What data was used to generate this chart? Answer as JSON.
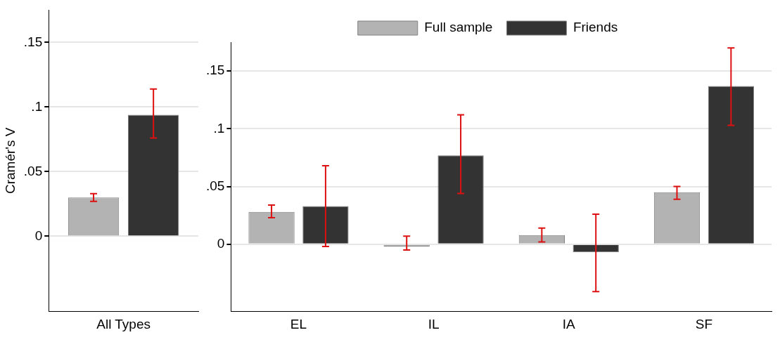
{
  "chart_data": [
    {
      "type": "bar",
      "ylabel": "Cramér's V",
      "categories": [
        "All Types"
      ],
      "series": [
        {
          "color": "#b3b3b3",
          "values": [
            0.03
          ],
          "errors": [
            [
              0.027,
              0.033
            ]
          ]
        },
        {
          "color": "#333333",
          "values": [
            0.094
          ],
          "errors": [
            [
              0.076,
              0.114
            ]
          ]
        }
      ],
      "ylim": [
        -0.058,
        0.175
      ],
      "yticks": [
        0,
        {
          "value": 0.05,
          "label": ".05"
        },
        {
          "value": 0.1,
          "label": ".1"
        },
        {
          "value": 0.15,
          "label": ".15"
        }
      ],
      "grid": "y",
      "legend": false
    },
    {
      "type": "bar",
      "categories": [
        "EL",
        "IL",
        "IA",
        "SF"
      ],
      "series": [
        {
          "name": "Full sample",
          "color": "#b3b3b3",
          "values": [
            0.028,
            -0.002,
            0.008,
            0.045
          ],
          "errors": [
            [
              0.023,
              0.034
            ],
            [
              -0.005,
              0.007
            ],
            [
              0.002,
              0.014
            ],
            [
              0.039,
              0.05
            ]
          ]
        },
        {
          "name": "Friends",
          "color": "#333333",
          "values": [
            0.033,
            0.077,
            -0.007,
            0.137
          ],
          "errors": [
            [
              -0.002,
              0.068
            ],
            [
              0.044,
              0.112
            ],
            [
              -0.041,
              0.026
            ],
            [
              0.103,
              0.17
            ]
          ]
        }
      ],
      "ylim": [
        -0.058,
        0.175
      ],
      "yticks": [
        0,
        {
          "value": 0.05,
          "label": ".05"
        },
        {
          "value": 0.1,
          "label": ".1"
        },
        {
          "value": 0.15,
          "label": ".15"
        }
      ],
      "grid": "y",
      "legend": "top"
    }
  ]
}
